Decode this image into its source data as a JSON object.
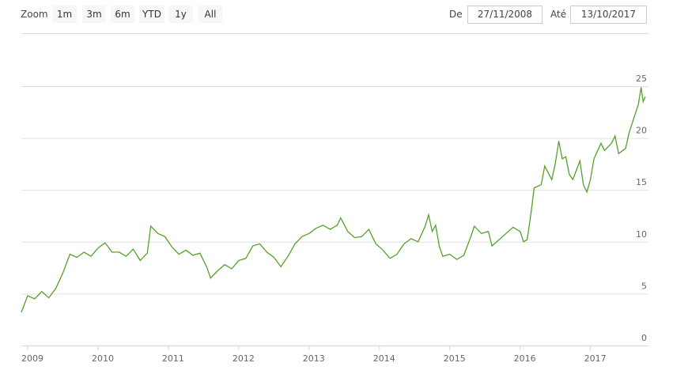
{
  "range_selector": {
    "label": "Zoom",
    "buttons": [
      "1m",
      "3m",
      "6m",
      "YTD",
      "1y",
      "All"
    ],
    "from_label": "De",
    "from": "27/11/2008",
    "to_label": "Até",
    "to": "13/10/2017"
  },
  "chart_data": {
    "type": "line",
    "x": [
      2008.91,
      2009.0,
      2009.1,
      2009.2,
      2009.3,
      2009.4,
      2009.5,
      2009.6,
      2009.7,
      2009.8,
      2009.9,
      2010.0,
      2010.1,
      2010.2,
      2010.3,
      2010.4,
      2010.5,
      2010.6,
      2010.7,
      2010.75,
      2010.85,
      2010.95,
      2011.05,
      2011.15,
      2011.25,
      2011.35,
      2011.45,
      2011.55,
      2011.6,
      2011.7,
      2011.8,
      2011.9,
      2012.0,
      2012.1,
      2012.2,
      2012.3,
      2012.4,
      2012.5,
      2012.6,
      2012.7,
      2012.8,
      2012.9,
      2013.0,
      2013.1,
      2013.2,
      2013.3,
      2013.4,
      2013.45,
      2013.55,
      2013.65,
      2013.75,
      2013.85,
      2013.95,
      2014.05,
      2014.15,
      2014.25,
      2014.35,
      2014.45,
      2014.55,
      2014.65,
      2014.7,
      2014.75,
      2014.8,
      2014.85,
      2014.9,
      2015.0,
      2015.1,
      2015.2,
      2015.3,
      2015.35,
      2015.45,
      2015.55,
      2015.6,
      2015.7,
      2015.8,
      2015.9,
      2016.0,
      2016.05,
      2016.1,
      2016.15,
      2016.2,
      2016.3,
      2016.35,
      2016.45,
      2016.5,
      2016.55,
      2016.6,
      2016.65,
      2016.7,
      2016.75,
      2016.85,
      2016.9,
      2016.95,
      2017.0,
      2017.05,
      2017.15,
      2017.2,
      2017.3,
      2017.35,
      2017.4,
      2017.5,
      2017.55,
      2017.62,
      2017.68,
      2017.72,
      2017.75,
      2017.78
    ],
    "series": [
      {
        "color": "#55a02a",
        "values": [
          3.2,
          4.8,
          4.5,
          5.2,
          4.6,
          5.5,
          7.0,
          8.8,
          8.5,
          9.0,
          8.6,
          9.4,
          9.9,
          9.0,
          9.0,
          8.6,
          9.3,
          8.2,
          8.9,
          11.5,
          10.8,
          10.5,
          9.5,
          8.8,
          9.2,
          8.7,
          8.9,
          7.5,
          6.5,
          7.2,
          7.8,
          7.4,
          8.2,
          8.4,
          9.6,
          9.8,
          9.0,
          8.5,
          7.6,
          8.6,
          9.8,
          10.5,
          10.8,
          11.3,
          11.6,
          11.2,
          11.6,
          12.3,
          11.0,
          10.4,
          10.5,
          11.2,
          9.8,
          9.2,
          8.4,
          8.8,
          9.8,
          10.3,
          10.0,
          11.5,
          12.6,
          11.0,
          11.6,
          9.6,
          8.6,
          8.8,
          8.3,
          8.7,
          10.5,
          11.5,
          10.8,
          11.0,
          9.6,
          10.2,
          10.8,
          11.4,
          11.0,
          10.0,
          10.2,
          12.5,
          15.2,
          15.5,
          17.3,
          16.0,
          17.5,
          19.7,
          18.0,
          18.2,
          16.5,
          16.0,
          17.8,
          15.5,
          14.8,
          16.0,
          18.0,
          19.5,
          18.8,
          19.5,
          20.2,
          18.5,
          19.0,
          20.5,
          22.0,
          23.2,
          24.9,
          23.5,
          24.0
        ]
      }
    ],
    "xlim": [
      2008.91,
      2017.78
    ],
    "xticks": [
      2009,
      2010,
      2011,
      2012,
      2013,
      2014,
      2015,
      2016,
      2017
    ],
    "ylim": [
      0,
      25
    ],
    "yticks": [
      0,
      5,
      10,
      15,
      20,
      25
    ],
    "grid": true
  }
}
